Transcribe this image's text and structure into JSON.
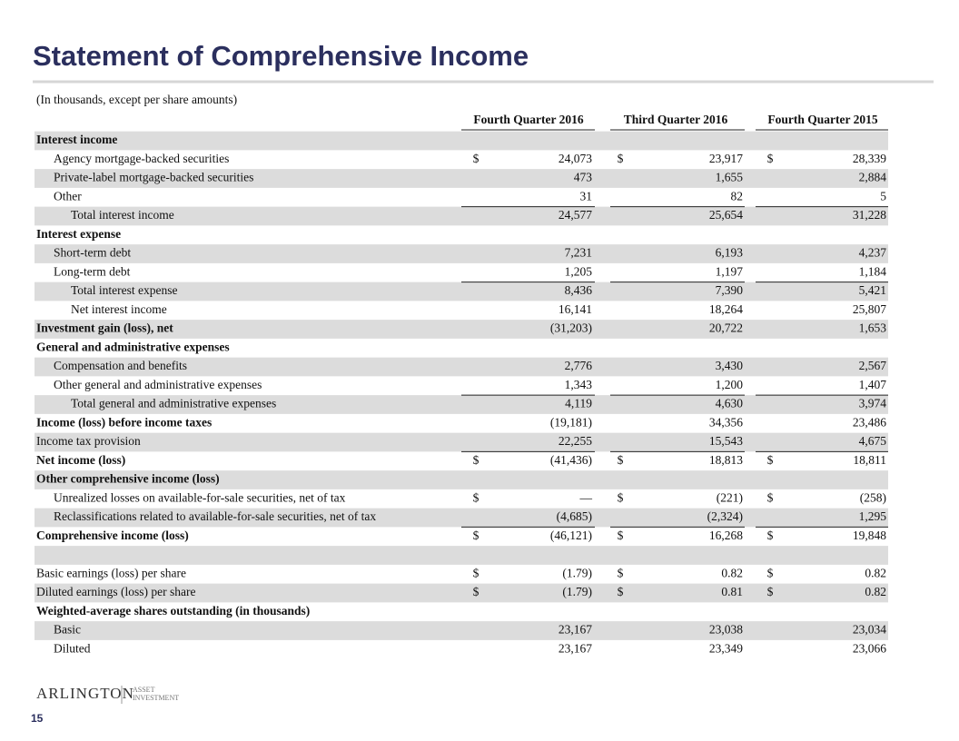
{
  "header": {
    "title": "Statement of Comprehensive Income",
    "note": "(In thousands, except per share amounts)"
  },
  "table": {
    "columns": [
      "Fourth Quarter 2016",
      "Third Quarter 2016",
      "Fourth Quarter 2015"
    ],
    "rows": [
      {
        "label": "Interest income"
      },
      {
        "label": "Agency mortgage-backed securities",
        "cells": [
          [
            "$",
            "24,073"
          ],
          [
            "$",
            "23,917"
          ],
          [
            "$",
            "28,339"
          ]
        ]
      },
      {
        "label": "Private-label mortgage-backed securities",
        "cells": [
          [
            null,
            "473"
          ],
          [
            null,
            "1,655"
          ],
          [
            null,
            "2,884"
          ]
        ]
      },
      {
        "label": "Other",
        "cells": [
          [
            null,
            "31"
          ],
          [
            null,
            "82"
          ],
          [
            null,
            "5"
          ]
        ]
      },
      {
        "label": "Total interest income",
        "cells": [
          [
            null,
            "24,577"
          ],
          [
            null,
            "25,654"
          ],
          [
            null,
            "31,228"
          ]
        ]
      },
      {
        "label": "Interest expense"
      },
      {
        "label": "Short-term debt",
        "cells": [
          [
            null,
            "7,231"
          ],
          [
            null,
            "6,193"
          ],
          [
            null,
            "4,237"
          ]
        ]
      },
      {
        "label": "Long-term debt",
        "cells": [
          [
            null,
            "1,205"
          ],
          [
            null,
            "1,197"
          ],
          [
            null,
            "1,184"
          ]
        ]
      },
      {
        "label": "Total interest expense",
        "cells": [
          [
            null,
            "8,436"
          ],
          [
            null,
            "7,390"
          ],
          [
            null,
            "5,421"
          ]
        ]
      },
      {
        "label": "Net interest income",
        "cells": [
          [
            null,
            "16,141"
          ],
          [
            null,
            "18,264"
          ],
          [
            null,
            "25,807"
          ]
        ]
      },
      {
        "label": "Investment gain (loss), net",
        "cells": [
          [
            null,
            "(31,203)"
          ],
          [
            null,
            "20,722"
          ],
          [
            null,
            "1,653"
          ]
        ]
      },
      {
        "label": "General and administrative expenses"
      },
      {
        "label": "Compensation and benefits",
        "cells": [
          [
            null,
            "2,776"
          ],
          [
            null,
            "3,430"
          ],
          [
            null,
            "2,567"
          ]
        ]
      },
      {
        "label": "Other general and administrative expenses",
        "cells": [
          [
            null,
            "1,343"
          ],
          [
            null,
            "1,200"
          ],
          [
            null,
            "1,407"
          ]
        ]
      },
      {
        "label": "Total general and administrative expenses",
        "cells": [
          [
            null,
            "4,119"
          ],
          [
            null,
            "4,630"
          ],
          [
            null,
            "3,974"
          ]
        ]
      },
      {
        "label": "Income (loss) before income taxes",
        "cells": [
          [
            null,
            "(19,181)"
          ],
          [
            null,
            "34,356"
          ],
          [
            null,
            "23,486"
          ]
        ]
      },
      {
        "label": "Income tax provision",
        "cells": [
          [
            null,
            "22,255"
          ],
          [
            null,
            "15,543"
          ],
          [
            null,
            "4,675"
          ]
        ]
      },
      {
        "label": "Net income (loss)",
        "cells": [
          [
            "$",
            "(41,436)"
          ],
          [
            "$",
            "18,813"
          ],
          [
            "$",
            "18,811"
          ]
        ]
      },
      {
        "label": "Other comprehensive income (loss)"
      },
      {
        "label": "Unrealized losses on available-for-sale securities, net of tax",
        "cells": [
          [
            "$",
            "—"
          ],
          [
            "$",
            "(221)"
          ],
          [
            "$",
            "(258)"
          ]
        ]
      },
      {
        "label": "Reclassifications related to available-for-sale securities, net of tax",
        "cells": [
          [
            null,
            "(4,685)"
          ],
          [
            null,
            "(2,324)"
          ],
          [
            null,
            "1,295"
          ]
        ]
      },
      {
        "label": "Comprehensive income (loss)",
        "cells": [
          [
            "$",
            "(46,121)"
          ],
          [
            "$",
            "16,268"
          ],
          [
            "$",
            "19,848"
          ]
        ]
      },
      {
        "label": "Basic earnings (loss) per share",
        "cells": [
          [
            "$",
            "(1.79)"
          ],
          [
            "$",
            "0.82"
          ],
          [
            "$",
            "0.82"
          ]
        ]
      },
      {
        "label": "Diluted earnings (loss) per share",
        "cells": [
          [
            "$",
            "(1.79)"
          ],
          [
            "$",
            "0.81"
          ],
          [
            "$",
            "0.82"
          ]
        ]
      },
      {
        "label": "Weighted-average shares outstanding (in thousands)"
      },
      {
        "label": "Basic",
        "cells": [
          [
            null,
            "23,167"
          ],
          [
            null,
            "23,038"
          ],
          [
            null,
            "23,034"
          ]
        ]
      },
      {
        "label": "Diluted",
        "cells": [
          [
            null,
            "23,167"
          ],
          [
            null,
            "23,349"
          ],
          [
            null,
            "23,066"
          ]
        ]
      }
    ]
  },
  "footer": {
    "logo": "ARLINGTON",
    "logo_sub": [
      "ASSET",
      "INVESTMENT"
    ],
    "page": "15"
  }
}
